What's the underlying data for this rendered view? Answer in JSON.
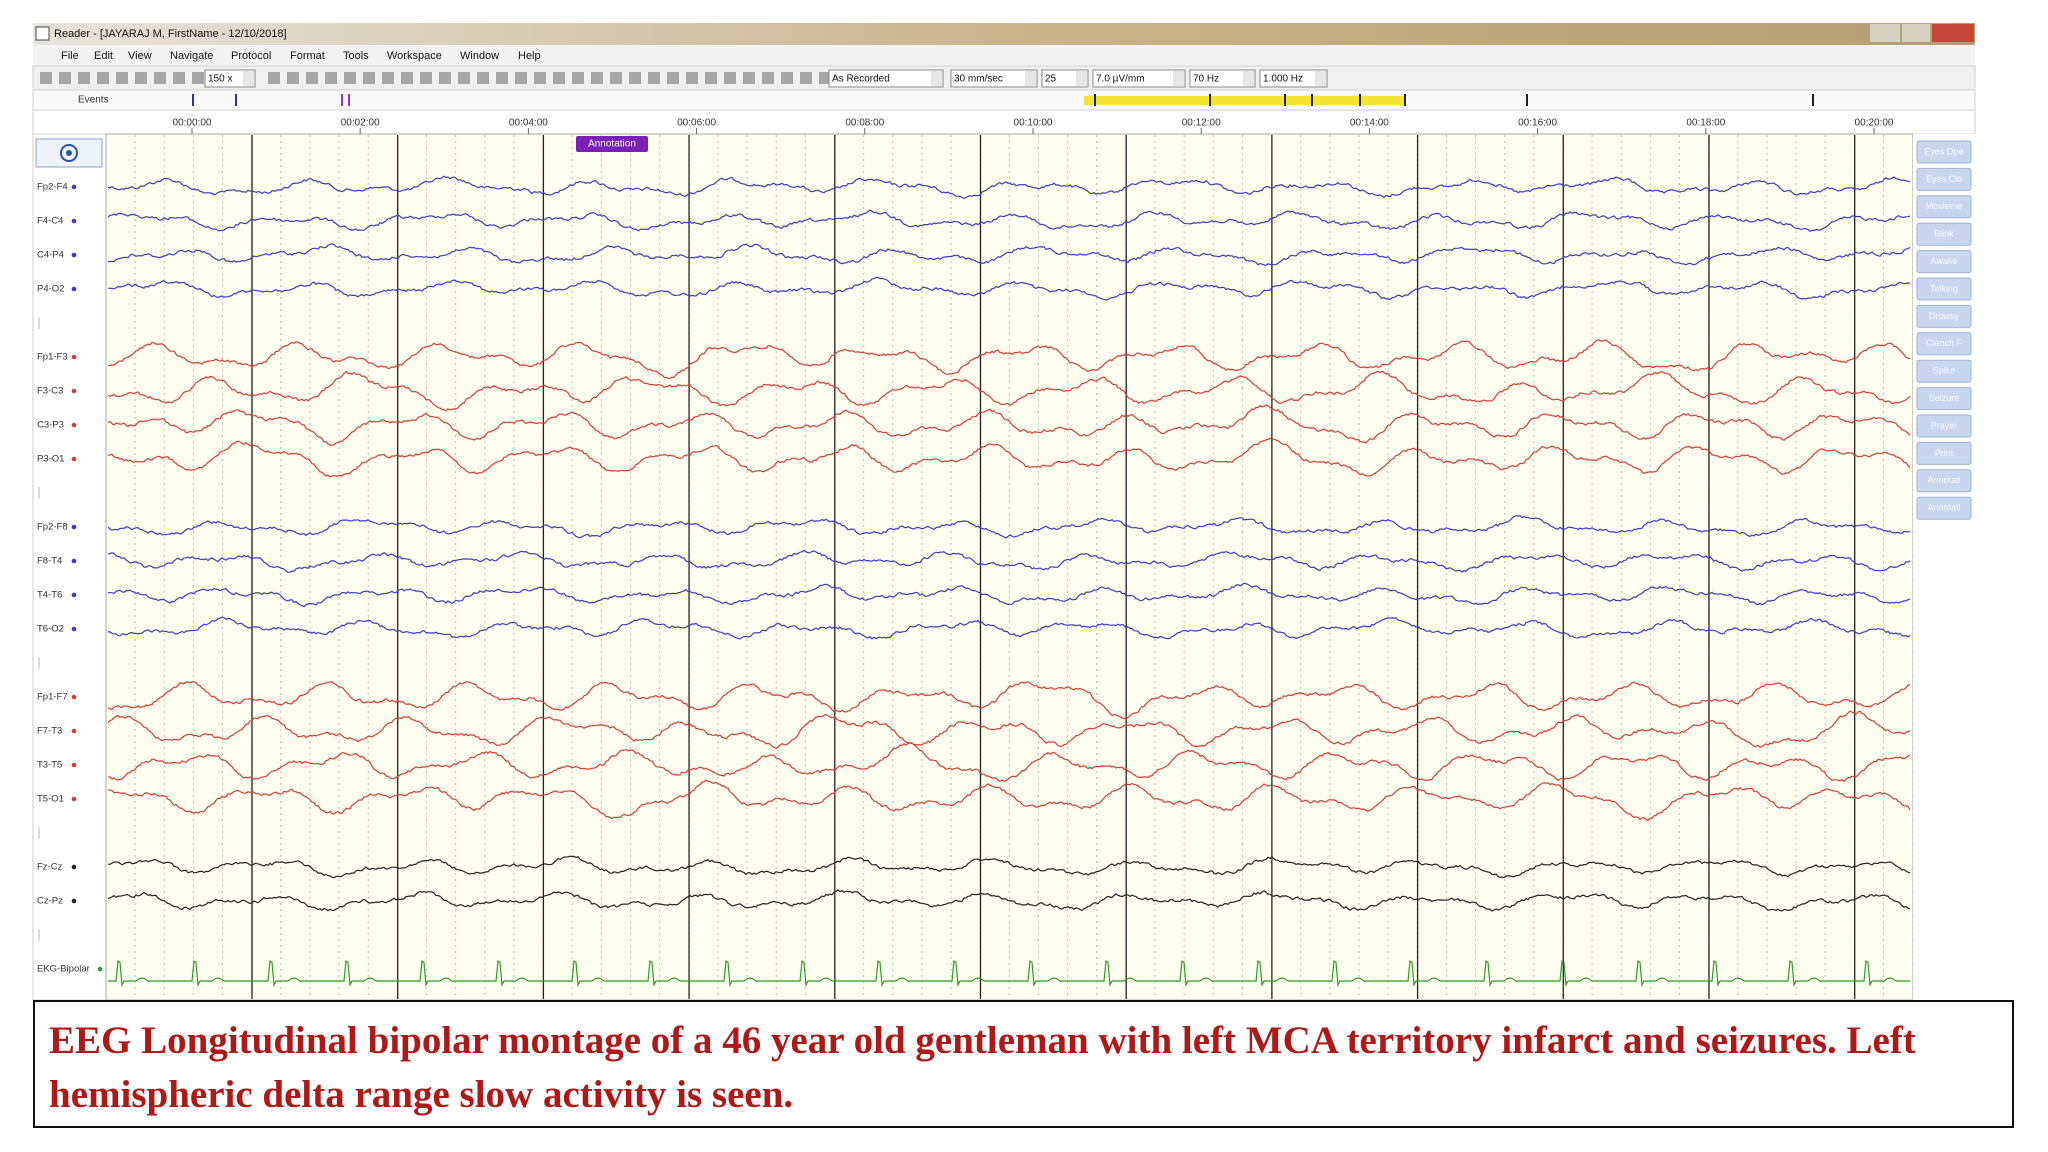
{
  "window": {
    "title": "Reader - [JAYARAJ M, FirstName - 12/10/2018]"
  },
  "menu": [
    "File",
    "Edit",
    "View",
    "Navigate",
    "Protocol",
    "Format",
    "Tools",
    "Workspace",
    "Window",
    "Help"
  ],
  "toolbar": {
    "dropdowns": [
      "150 x",
      "As Recorded",
      "30 mm/sec",
      "25",
      "7.0 µV/mm",
      "70 Hz",
      "1.000 Hz"
    ]
  },
  "events_label": "Events",
  "timeline": [
    "00:00:00",
    "00:02:00",
    "00:04:00",
    "00:06:00",
    "00:08:00",
    "00:10:00",
    "00:12:00",
    "00:14:00",
    "00:16:00",
    "00:18:00",
    "00:20:00"
  ],
  "annotation": "Annotation",
  "channel_groups": [
    {
      "color": "#3a3ac4",
      "channels": [
        "Fp2-F4",
        "F4-C4",
        "C4-P4",
        "P4-O2"
      ]
    },
    {
      "color": "#d43a3a",
      "channels": [
        "Fp1-F3",
        "F3-C3",
        "C3-P3",
        "P3-O1"
      ]
    },
    {
      "color": "#3a3ac4",
      "channels": [
        "Fp2-F8",
        "F8-T4",
        "T4-T6",
        "T6-O2"
      ]
    },
    {
      "color": "#d43a3a",
      "channels": [
        "Fp1-F7",
        "F7-T3",
        "T3-T5",
        "T5-O1"
      ]
    },
    {
      "color": "#222222",
      "channels": [
        "Fz-Cz",
        "Cz-Pz"
      ]
    },
    {
      "color": "#2a9a2a",
      "channels": [
        "EKG-Bipolar"
      ]
    }
  ],
  "event_buttons": [
    "Eyes Ope",
    "Eyes Clo",
    "Movleme",
    "Blink",
    "Awake",
    "Talking",
    "Drowsy",
    "Clench F",
    "Spike",
    "Seizure",
    "Prayer",
    "Print",
    "Annotati",
    "Annotati"
  ],
  "caption": "EEG Longitudinal bipolar montage of  a 46 year old gentleman with left MCA territory infarct and seizures. Left hemispheric delta range slow activity is seen."
}
